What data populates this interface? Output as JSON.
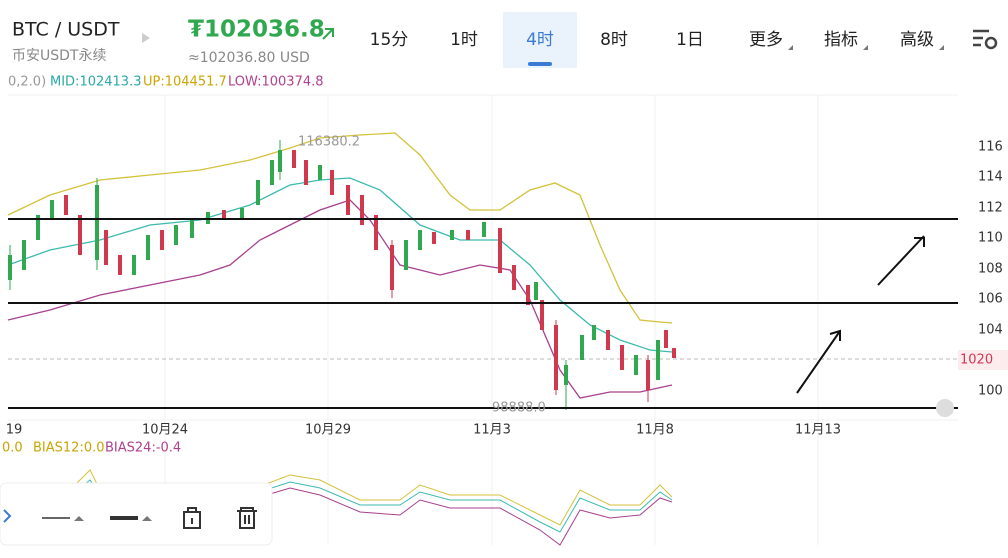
{
  "header": {
    "pair": "BTC / USDT",
    "market": "币安USDT永续",
    "price": "₮102036.8",
    "price_usd": "≈102036.80 USD"
  },
  "tabs": [
    "15分",
    "1时",
    "4时",
    "8时",
    "1日",
    "更多",
    "指标",
    "高级"
  ],
  "indicator": {
    "params": "0,2.0)",
    "mid": "MID:102413.3",
    "up": "UP:104451.7",
    "low": "LOW:100374.8"
  },
  "price_axis": [
    "116",
    "114",
    "112",
    "110",
    "108",
    "106",
    "104",
    "100"
  ],
  "current_price": "1020",
  "chart_labels": {
    "high": "116380.2",
    "low": "98888.0"
  },
  "time_axis": [
    "19",
    "10月24",
    "10月29",
    "11月3",
    "11月8",
    "11月13"
  ],
  "sub_indicator": {
    "first": "0.0",
    "bias12": "BIAS12:0.0",
    "bias24": "BIAS24:-0.4"
  }
}
